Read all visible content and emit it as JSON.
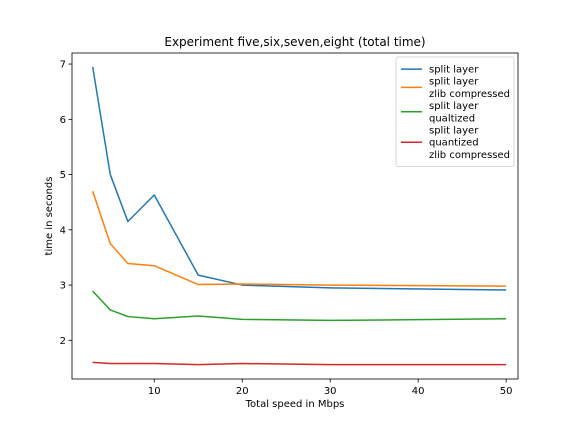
{
  "chart_data": {
    "type": "line",
    "title": "Experiment five,six,seven,eight (total time)",
    "xlabel": "Total speed in Mbps",
    "ylabel": "time in seconds",
    "xlim": [
      0.65,
      51.35
    ],
    "ylim": [
      1.3,
      7.2
    ],
    "xticks": [
      10,
      20,
      30,
      40,
      50
    ],
    "yticks": [
      2,
      3,
      4,
      5,
      6,
      7
    ],
    "grid": false,
    "legend_position": "top-right",
    "x": [
      3,
      5,
      7,
      10,
      15,
      20,
      30,
      50
    ],
    "series": [
      {
        "name": [
          "split layer"
        ],
        "color": "#1f77b4",
        "values": [
          6.95,
          5.0,
          4.15,
          4.63,
          3.18,
          3.0,
          2.95,
          2.91
        ]
      },
      {
        "name": [
          "split layer",
          "zlib compressed"
        ],
        "color": "#ff7f0e",
        "values": [
          4.7,
          3.75,
          3.39,
          3.35,
          3.01,
          3.02,
          3.0,
          2.98
        ]
      },
      {
        "name": [
          "split layer",
          "qualtized"
        ],
        "color": "#2ca02c",
        "values": [
          2.89,
          2.55,
          2.43,
          2.39,
          2.44,
          2.38,
          2.36,
          2.39
        ]
      },
      {
        "name": [
          "split layer",
          "quantized",
          "zlib compressed"
        ],
        "color": "#d62728",
        "values": [
          1.6,
          1.58,
          1.58,
          1.58,
          1.56,
          1.58,
          1.56,
          1.56
        ]
      }
    ]
  }
}
